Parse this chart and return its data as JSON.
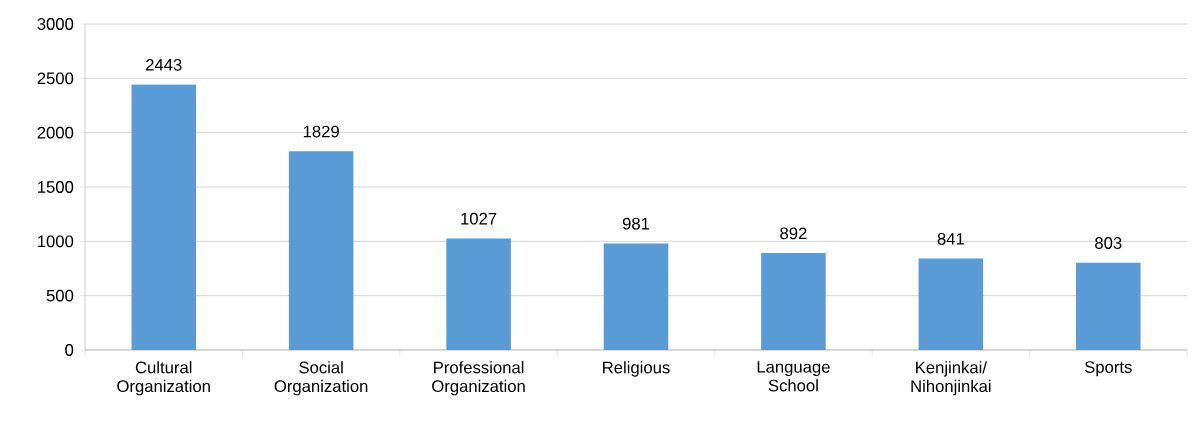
{
  "chart_data": {
    "type": "bar",
    "categories": [
      "Cultural Organization",
      "Social Organization",
      "Professional Organization",
      "Religious",
      "Language School",
      "Kenjinkai/ Nihonjinkai",
      "Sports"
    ],
    "values": [
      2443,
      1829,
      1027,
      981,
      892,
      841,
      803
    ],
    "color": "#5b9bd5",
    "data_labels": true,
    "grid": "y",
    "ylim": [
      0,
      3000
    ],
    "yticks": [
      0,
      500,
      1000,
      1500,
      2000,
      2500,
      3000
    ]
  }
}
